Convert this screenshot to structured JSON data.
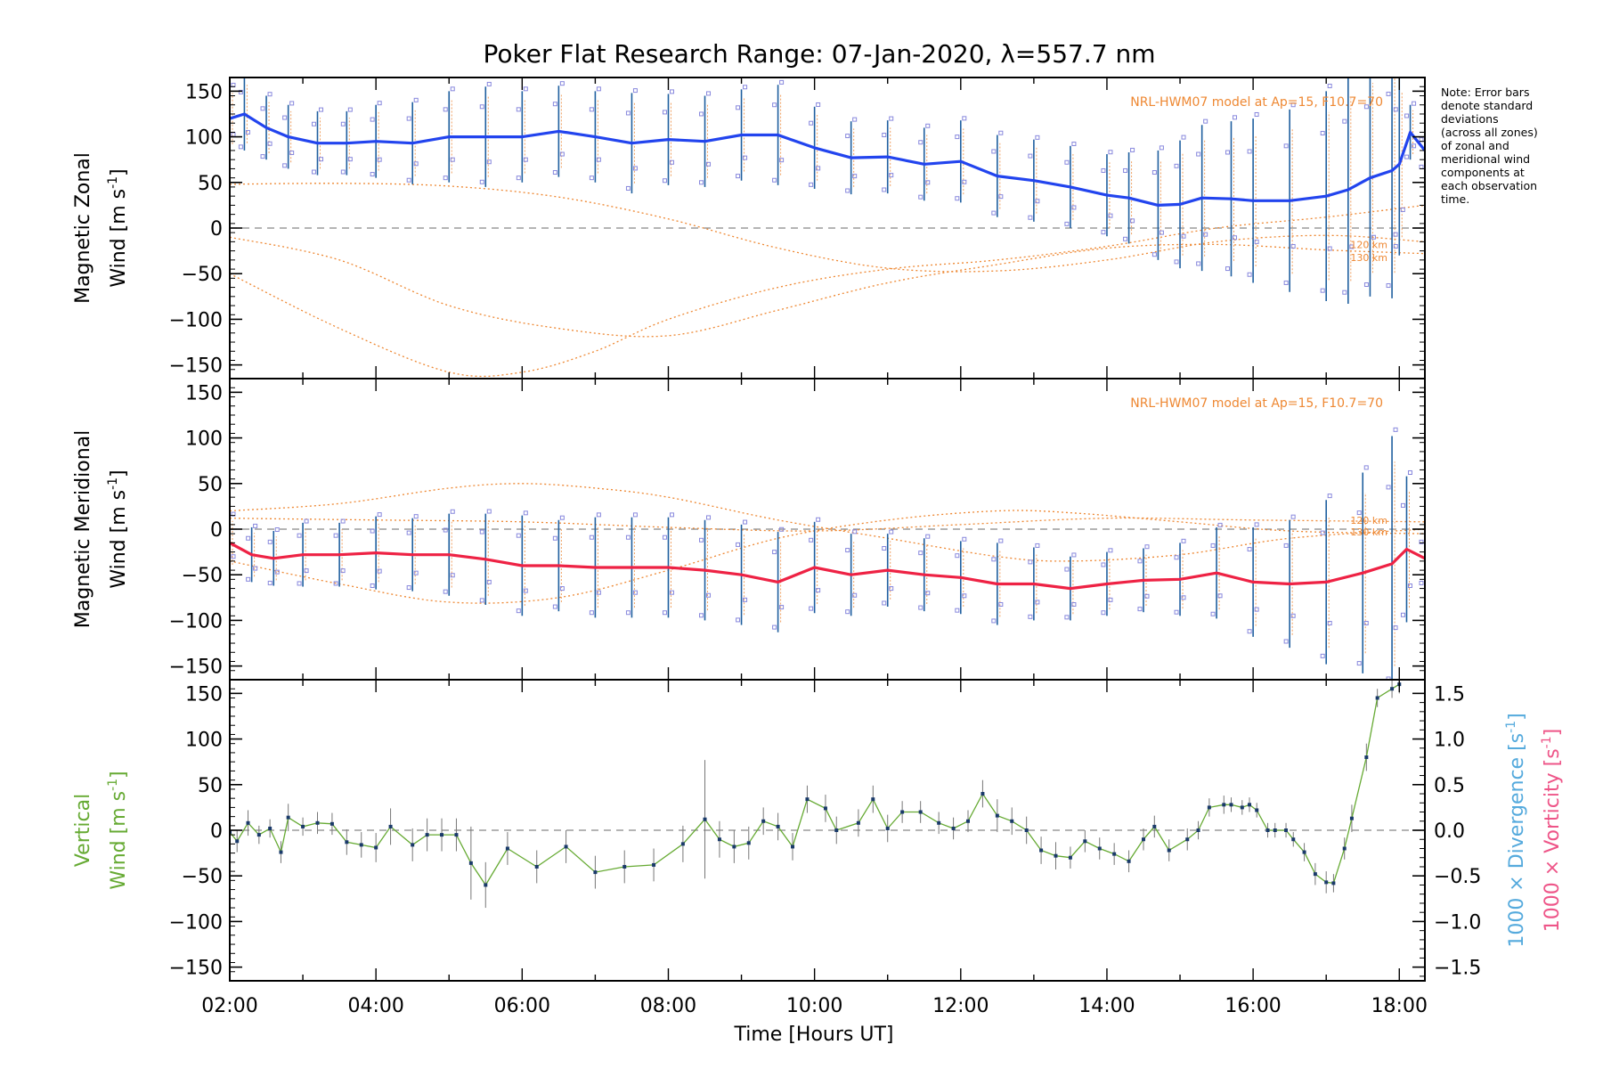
{
  "chart_data": {
    "title": "Poker Flat Research Range: 07-Jan-2020, λ=557.7 nm",
    "xlabel": "Time [Hours UT]",
    "x_ticks": [
      "02:00",
      "04:00",
      "06:00",
      "08:00",
      "10:00",
      "12:00",
      "14:00",
      "16:00",
      "18:00"
    ],
    "xlim": [
      2.0,
      18.35
    ],
    "note": [
      "Note: Error bars",
      "denote standard",
      "deviations",
      "(across all zones)",
      "of zonal and",
      "meridional wind",
      "components at",
      "each observation",
      "time."
    ],
    "panels": [
      {
        "type": "line",
        "name": "zonal",
        "ylabel": [
          "Magnetic Zonal",
          "Wind [m s",
          "-1",
          "]"
        ],
        "ylim": [
          -165,
          165
        ],
        "yticks": [
          -150,
          -100,
          -50,
          0,
          50,
          100,
          150
        ],
        "model_label": "NRL-HWM07 model at Ap=15, F10.7=70",
        "model_alt_labels": [
          "120 km",
          "130 km"
        ],
        "main_color": "#2244ee",
        "scatter_color": "#8888dd",
        "errorbar_color": "#1f5f9f",
        "series": {
          "x": [
            2.0,
            2.2,
            2.5,
            2.8,
            3.2,
            3.6,
            4.0,
            4.5,
            5.0,
            5.5,
            6.0,
            6.5,
            7.0,
            7.5,
            8.0,
            8.5,
            9.0,
            9.5,
            10.0,
            10.5,
            11.0,
            11.5,
            12.0,
            12.5,
            13.0,
            13.5,
            14.0,
            14.3,
            14.7,
            15.0,
            15.3,
            15.7,
            16.0,
            16.5,
            17.0,
            17.3,
            17.6,
            17.9,
            18.0,
            18.15,
            18.35
          ],
          "values": [
            120,
            125,
            110,
            100,
            93,
            93,
            95,
            93,
            100,
            100,
            100,
            106,
            100,
            93,
            97,
            95,
            102,
            102,
            88,
            77,
            78,
            70,
            73,
            57,
            52,
            45,
            36,
            33,
            25,
            26,
            33,
            32,
            30,
            30,
            35,
            42,
            55,
            63,
            70,
            105,
            85
          ],
          "errors": [
            35,
            40,
            35,
            35,
            35,
            35,
            40,
            45,
            50,
            55,
            50,
            50,
            50,
            55,
            50,
            50,
            50,
            55,
            45,
            40,
            40,
            40,
            45,
            45,
            45,
            45,
            45,
            50,
            60,
            70,
            80,
            85,
            90,
            100,
            115,
            125,
            130,
            140,
            100,
            30,
            20
          ]
        },
        "model_curves": [
          {
            "x": [
              2.0,
              3.5,
              5.0,
              6.5,
              8.0,
              9.5,
              11.0,
              12.5,
              14.0,
              15.5,
              17.0,
              18.35
            ],
            "values": [
              48,
              49,
              46,
              34,
              10,
              -22,
              -44,
              -47,
              -35,
              -15,
              -8,
              -15
            ]
          },
          {
            "x": [
              2.0,
              3.5,
              5.0,
              6.5,
              8.0,
              9.5,
              11.0,
              12.5,
              14.0,
              15.5,
              17.0,
              18.35
            ],
            "values": [
              -10,
              -35,
              -85,
              -110,
              -118,
              -90,
              -60,
              -40,
              -22,
              -18,
              -24,
              -28
            ]
          },
          {
            "x": [
              2.0,
              3.5,
              5.0,
              6.0,
              7.0,
              8.0,
              9.5,
              11.0,
              12.5,
              14.0,
              15.5,
              17.0,
              18.35
            ],
            "values": [
              -50,
              -110,
              -158,
              -158,
              -135,
              -100,
              -65,
              -45,
              -35,
              -20,
              0,
              12,
              25
            ]
          }
        ]
      },
      {
        "type": "line",
        "name": "meridional",
        "ylabel": [
          "Magnetic Meridional",
          "Wind [m s",
          "-1",
          "]"
        ],
        "ylim": [
          -165,
          165
        ],
        "yticks": [
          -150,
          -100,
          -50,
          0,
          50,
          100,
          150
        ],
        "model_label": "NRL-HWM07 model at Ap=15, F10.7=70",
        "model_alt_labels": [
          "120 km",
          "130 km"
        ],
        "main_color": "#ee2244",
        "scatter_color": "#8888dd",
        "errorbar_color": "#1f5f9f",
        "series": {
          "x": [
            2.0,
            2.3,
            2.6,
            3.0,
            3.5,
            4.0,
            4.5,
            5.0,
            5.5,
            6.0,
            6.5,
            7.0,
            7.5,
            8.0,
            8.5,
            9.0,
            9.5,
            10.0,
            10.5,
            11.0,
            11.5,
            12.0,
            12.5,
            13.0,
            13.5,
            14.0,
            14.5,
            15.0,
            15.5,
            16.0,
            16.5,
            17.0,
            17.5,
            17.9,
            18.1,
            18.35
          ],
          "values": [
            -15,
            -28,
            -32,
            -28,
            -28,
            -26,
            -28,
            -28,
            -33,
            -40,
            -40,
            -42,
            -42,
            -42,
            -45,
            -50,
            -58,
            -42,
            -50,
            -45,
            -50,
            -53,
            -60,
            -60,
            -65,
            -60,
            -56,
            -55,
            -48,
            -58,
            -60,
            -58,
            -48,
            -38,
            -22,
            -32
          ],
          "errors": [
            30,
            30,
            30,
            35,
            35,
            40,
            40,
            45,
            50,
            55,
            50,
            55,
            55,
            55,
            55,
            55,
            55,
            50,
            45,
            40,
            40,
            40,
            45,
            40,
            35,
            35,
            35,
            40,
            50,
            60,
            70,
            90,
            110,
            140,
            80,
            30
          ]
        },
        "model_curves": [
          {
            "x": [
              2.0,
              3.5,
              5.0,
              6.0,
              7.0,
              8.0,
              9.5,
              11.0,
              12.5,
              13.5,
              15.0,
              16.5,
              18.35
            ],
            "values": [
              20,
              28,
              45,
              50,
              45,
              35,
              10,
              -10,
              -30,
              -35,
              -28,
              -10,
              0
            ]
          },
          {
            "x": [
              2.0,
              3.5,
              5.0,
              6.5,
              8.0,
              9.5,
              11.0,
              12.5,
              13.5,
              15.0,
              16.5,
              18.35
            ],
            "values": [
              -35,
              -60,
              -80,
              -75,
              -45,
              -10,
              10,
              20,
              18,
              8,
              -2,
              -5
            ]
          },
          {
            "x": [
              2.0,
              4.0,
              6.0,
              8.0,
              10.0,
              12.0,
              14.0,
              16.0,
              18.35
            ],
            "values": [
              12,
              10,
              8,
              2,
              -2,
              5,
              12,
              10,
              8
            ]
          }
        ]
      },
      {
        "type": "line",
        "name": "vertical",
        "ylabel": [
          "Vertical",
          "Wind [m s",
          "-1",
          "]"
        ],
        "ylim": [
          -165,
          165
        ],
        "yticks": [
          -150,
          -100,
          -50,
          0,
          50,
          100,
          150
        ],
        "right_axis": {
          "labels": [
            "1000 × Divergence [s",
            "-1",
            "]",
            "1000 × Vorticity [s",
            "-1",
            "]"
          ],
          "ylim": [
            -1.65,
            1.65
          ],
          "yticks": [
            -1.5,
            -1.0,
            -0.5,
            0.0,
            0.5,
            1.0,
            1.5
          ],
          "ytick_labels": [
            "−1.5",
            "−1.0",
            "−0.5",
            "0.0",
            "0.5",
            "1.0",
            "1.5"
          ],
          "div_color": "#55aadd",
          "vort_color": "#ee5588"
        },
        "main_color": "#66aa33",
        "series": {
          "x": [
            2.0,
            2.1,
            2.25,
            2.4,
            2.55,
            2.7,
            2.8,
            3.0,
            3.2,
            3.4,
            3.6,
            3.8,
            4.0,
            4.2,
            4.5,
            4.7,
            4.9,
            5.1,
            5.3,
            5.5,
            5.8,
            6.2,
            6.6,
            7.0,
            7.4,
            7.8,
            8.2,
            8.5,
            8.7,
            8.9,
            9.1,
            9.3,
            9.5,
            9.7,
            9.9,
            10.15,
            10.3,
            10.6,
            10.8,
            11.0,
            11.2,
            11.45,
            11.7,
            11.9,
            12.1,
            12.3,
            12.5,
            12.7,
            12.9,
            13.1,
            13.3,
            13.5,
            13.7,
            13.9,
            14.1,
            14.3,
            14.5,
            14.65,
            14.85,
            15.1,
            15.25,
            15.4,
            15.6,
            15.7,
            15.85,
            15.95,
            16.05,
            16.2,
            16.3,
            16.45,
            16.55,
            16.7,
            16.85,
            17.0,
            17.1,
            17.25,
            17.35,
            17.55,
            17.7,
            17.9,
            18.0
          ],
          "values": [
            -2,
            -12,
            8,
            -5,
            2,
            -24,
            14,
            4,
            8,
            7,
            -13,
            -16,
            -19,
            4,
            -16,
            -5,
            -5,
            -5,
            -36,
            -60,
            -20,
            -40,
            -18,
            -46,
            -40,
            -38,
            -15,
            12,
            -10,
            -18,
            -14,
            10,
            4,
            -18,
            34,
            24,
            0,
            8,
            34,
            2,
            20,
            20,
            8,
            2,
            10,
            40,
            16,
            10,
            0,
            -22,
            -28,
            -30,
            -12,
            -20,
            -26,
            -34,
            -10,
            4,
            -22,
            -10,
            0,
            25,
            28,
            28,
            25,
            28,
            22,
            0,
            0,
            0,
            -10,
            -24,
            -48,
            -57,
            -58,
            -20,
            13,
            80,
            145,
            155,
            160
          ],
          "errors": [
            15,
            12,
            14,
            10,
            10,
            12,
            15,
            10,
            12,
            12,
            14,
            14,
            16,
            20,
            18,
            18,
            18,
            18,
            40,
            25,
            18,
            18,
            18,
            18,
            18,
            18,
            20,
            65,
            20,
            18,
            18,
            15,
            15,
            15,
            15,
            15,
            15,
            15,
            15,
            15,
            12,
            12,
            12,
            12,
            12,
            15,
            18,
            15,
            15,
            15,
            15,
            12,
            12,
            12,
            12,
            12,
            12,
            12,
            12,
            12,
            10,
            10,
            10,
            8,
            8,
            8,
            8,
            8,
            8,
            8,
            8,
            10,
            12,
            12,
            10,
            12,
            15,
            15,
            10,
            10,
            10
          ]
        }
      }
    ]
  }
}
